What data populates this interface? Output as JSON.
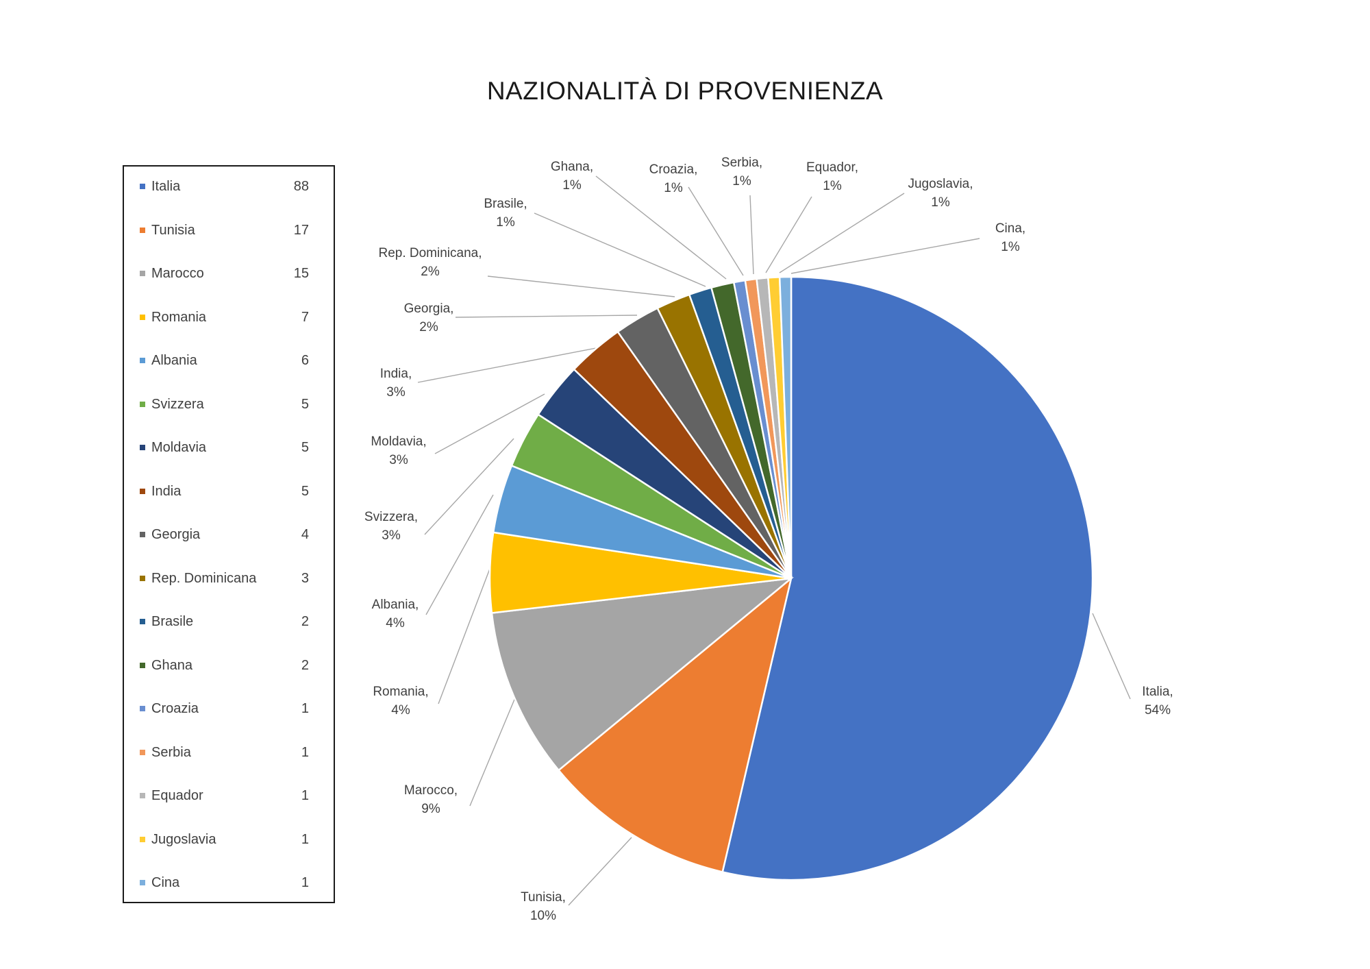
{
  "chart_data": {
    "type": "pie",
    "title": "NAZIONALITÀ DI PROVENIENZA",
    "slices": [
      {
        "name": "Italia",
        "value": 88,
        "pct_label": "54%",
        "color": "#4472C4"
      },
      {
        "name": "Tunisia",
        "value": 17,
        "pct_label": "10%",
        "color": "#ED7D31"
      },
      {
        "name": "Marocco",
        "value": 15,
        "pct_label": "9%",
        "color": "#A5A5A5"
      },
      {
        "name": "Romania",
        "value": 7,
        "pct_label": "4%",
        "color": "#FFC000"
      },
      {
        "name": "Albania",
        "value": 6,
        "pct_label": "4%",
        "color": "#5B9BD5"
      },
      {
        "name": "Svizzera",
        "value": 5,
        "pct_label": "3%",
        "color": "#70AD47"
      },
      {
        "name": "Moldavia",
        "value": 5,
        "pct_label": "3%",
        "color": "#264478"
      },
      {
        "name": "India",
        "value": 5,
        "pct_label": "3%",
        "color": "#9E480E"
      },
      {
        "name": "Georgia",
        "value": 4,
        "pct_label": "2%",
        "color": "#636363"
      },
      {
        "name": "Rep. Dominicana",
        "value": 3,
        "pct_label": "2%",
        "color": "#997300"
      },
      {
        "name": "Brasile",
        "value": 2,
        "pct_label": "1%",
        "color": "#255E91"
      },
      {
        "name": "Ghana",
        "value": 2,
        "pct_label": "1%",
        "color": "#43682B"
      },
      {
        "name": "Croazia",
        "value": 1,
        "pct_label": "1%",
        "color": "#698ED0"
      },
      {
        "name": "Serbia",
        "value": 1,
        "pct_label": "1%",
        "color": "#F1975A"
      },
      {
        "name": "Equador",
        "value": 1,
        "pct_label": "1%",
        "color": "#B7B7B7"
      },
      {
        "name": "Jugoslavia",
        "value": 1,
        "pct_label": "1%",
        "color": "#FFCD33"
      },
      {
        "name": "Cina",
        "value": 1,
        "pct_label": "1%",
        "color": "#7CAFDD"
      }
    ],
    "legend_placement": "left"
  }
}
